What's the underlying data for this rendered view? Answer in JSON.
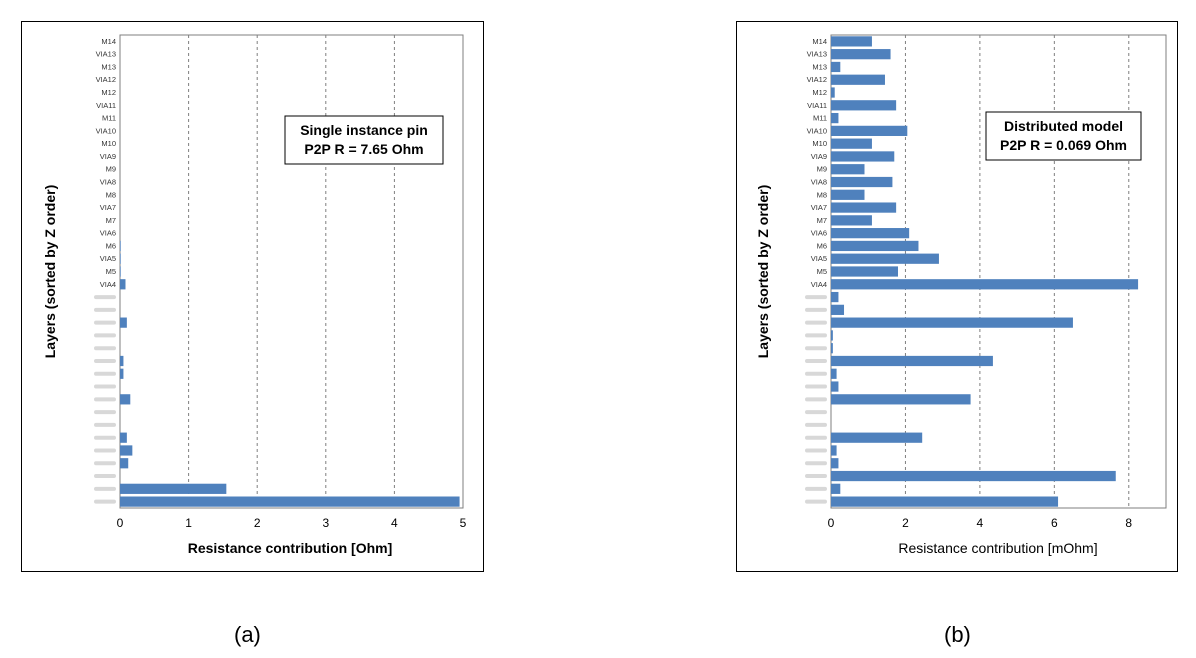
{
  "captions": {
    "a": "(a)",
    "b": "(b)"
  },
  "colors": {
    "bar": "#4F81BD",
    "grid": "#7f7f7f",
    "axis": "#7f7f7f",
    "hidden_label": "#c8c8c8"
  },
  "chart_data": [
    {
      "type": "bar",
      "orientation": "horizontal",
      "ylabel": "Layers (sorted by Z order)",
      "xlabel": "Resistance contribution [Ohm]",
      "xlim": [
        0,
        5
      ],
      "xticks": [
        "0",
        "1",
        "2",
        "3",
        "4",
        "5"
      ],
      "grid": "vertical dashed",
      "annotation": [
        "Single instance pin",
        "P2P R = 7.65 Ohm"
      ],
      "categories": [
        "M14",
        "VIA13",
        "M13",
        "VIA12",
        "M12",
        "VIA11",
        "M11",
        "VIA10",
        "M10",
        "VIA9",
        "M9",
        "VIA8",
        "M8",
        "VIA7",
        "M7",
        "VIA6",
        "M6",
        "VIA5",
        "M5",
        "VIA4",
        "",
        "",
        "",
        "",
        "",
        "",
        "",
        "",
        "",
        "",
        "",
        "",
        "",
        "",
        "",
        "",
        ""
      ],
      "values": [
        0,
        0,
        0,
        0,
        0,
        0,
        0,
        0,
        0,
        0,
        0,
        0,
        0,
        0,
        0,
        0,
        0.01,
        0.01,
        0.01,
        0.08,
        0,
        0,
        0.1,
        0,
        0,
        0.05,
        0.05,
        0,
        0.15,
        0,
        0,
        0.1,
        0.18,
        0.12,
        0,
        1.55,
        4.95
      ]
    },
    {
      "type": "bar",
      "orientation": "horizontal",
      "ylabel": "Layers (sorted by Z order)",
      "xlabel": "Resistance contribution [mOhm]",
      "xlim": [
        0,
        9
      ],
      "xticks": [
        "0",
        "2",
        "4",
        "6",
        "8"
      ],
      "grid": "vertical dashed",
      "annotation": [
        "Distributed model",
        "P2P R = 0.069 Ohm"
      ],
      "categories": [
        "M14",
        "VIA13",
        "M13",
        "VIA12",
        "M12",
        "VIA11",
        "M11",
        "VIA10",
        "M10",
        "VIA9",
        "M9",
        "VIA8",
        "M8",
        "VIA7",
        "M7",
        "VIA6",
        "M6",
        "VIA5",
        "M5",
        "VIA4",
        "",
        "",
        "",
        "",
        "",
        "",
        "",
        "",
        "",
        "",
        "",
        "",
        "",
        "",
        "",
        "",
        ""
      ],
      "values": [
        1.1,
        1.6,
        0.25,
        1.45,
        0.1,
        1.75,
        0.2,
        2.05,
        1.1,
        1.7,
        0.9,
        1.65,
        0.9,
        1.75,
        1.1,
        2.1,
        2.35,
        2.9,
        1.8,
        8.25,
        0.2,
        0.35,
        6.5,
        0.05,
        0.05,
        4.35,
        0.15,
        0.2,
        3.75,
        0,
        0,
        2.45,
        0.15,
        0.2,
        7.65,
        0.25,
        6.1
      ]
    }
  ]
}
